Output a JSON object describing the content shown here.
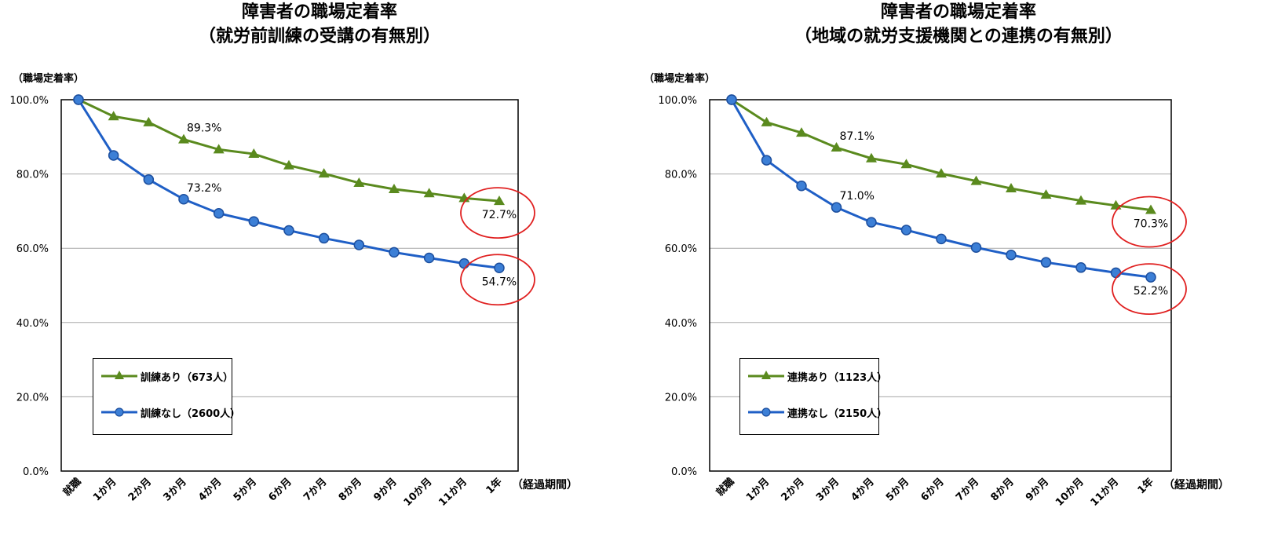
{
  "chart_data": [
    {
      "type": "line",
      "title": "障害者の職場定着率",
      "subtitle": "（就労前訓練の受講の有無別）",
      "ylabel": "（職場定着率）",
      "xlabel": "（経過期間）",
      "ylim": [
        0,
        100
      ],
      "y_ticks": [
        "0.0%",
        "20.0%",
        "40.0%",
        "60.0%",
        "80.0%",
        "100.0%"
      ],
      "categories": [
        "就職",
        "1か月",
        "2か月",
        "3か月",
        "4か月",
        "5か月",
        "6か月",
        "7か月",
        "8か月",
        "9か月",
        "10か月",
        "11か月",
        "1年"
      ],
      "grid": true,
      "legend_position": "bottom-left",
      "series": [
        {
          "name": "訓練あり（673人）",
          "color": "#5a8a1e",
          "marker": "triangle",
          "values": [
            100,
            95.5,
            93.9,
            89.3,
            86.6,
            85.4,
            82.3,
            80.1,
            77.6,
            75.9,
            74.8,
            73.5,
            72.7
          ]
        },
        {
          "name": "訓練なし（2600人）",
          "color": "#1f5fc6",
          "marker": "circle",
          "values": [
            100,
            85.0,
            78.5,
            73.2,
            69.4,
            67.2,
            64.8,
            62.7,
            60.9,
            58.9,
            57.4,
            55.9,
            54.7
          ]
        }
      ],
      "annotations": [
        {
          "series": 0,
          "index": 3,
          "text": "89.3%"
        },
        {
          "series": 1,
          "index": 3,
          "text": "73.2%"
        },
        {
          "series": 0,
          "index": 12,
          "text": "72.7%",
          "circled": true
        },
        {
          "series": 1,
          "index": 12,
          "text": "54.7%",
          "circled": true
        }
      ]
    },
    {
      "type": "line",
      "title": "障害者の職場定着率",
      "subtitle": "（地域の就労支援機関との連携の有無別）",
      "ylabel": "（職場定着率）",
      "xlabel": "（経過期間）",
      "ylim": [
        0,
        100
      ],
      "y_ticks": [
        "0.0%",
        "20.0%",
        "40.0%",
        "60.0%",
        "80.0%",
        "100.0%"
      ],
      "categories": [
        "就職",
        "1か月",
        "2か月",
        "3か月",
        "4か月",
        "5か月",
        "6か月",
        "7か月",
        "8か月",
        "9か月",
        "10か月",
        "11か月",
        "1年"
      ],
      "grid": true,
      "legend_position": "bottom-left",
      "series": [
        {
          "name": "連携あり（1123人）",
          "color": "#5a8a1e",
          "marker": "triangle",
          "values": [
            100,
            93.9,
            91.1,
            87.1,
            84.2,
            82.6,
            80.1,
            78.1,
            76.1,
            74.4,
            72.8,
            71.5,
            70.3
          ]
        },
        {
          "name": "連携なし（2150人）",
          "color": "#1f5fc6",
          "marker": "circle",
          "values": [
            100,
            83.7,
            76.8,
            71.0,
            67.0,
            64.9,
            62.5,
            60.2,
            58.2,
            56.2,
            54.8,
            53.4,
            52.2
          ]
        }
      ],
      "annotations": [
        {
          "series": 0,
          "index": 3,
          "text": "87.1%"
        },
        {
          "series": 1,
          "index": 3,
          "text": "71.0%"
        },
        {
          "series": 0,
          "index": 12,
          "text": "70.3%",
          "circled": true
        },
        {
          "series": 1,
          "index": 12,
          "text": "52.2%",
          "circled": true
        }
      ]
    }
  ]
}
